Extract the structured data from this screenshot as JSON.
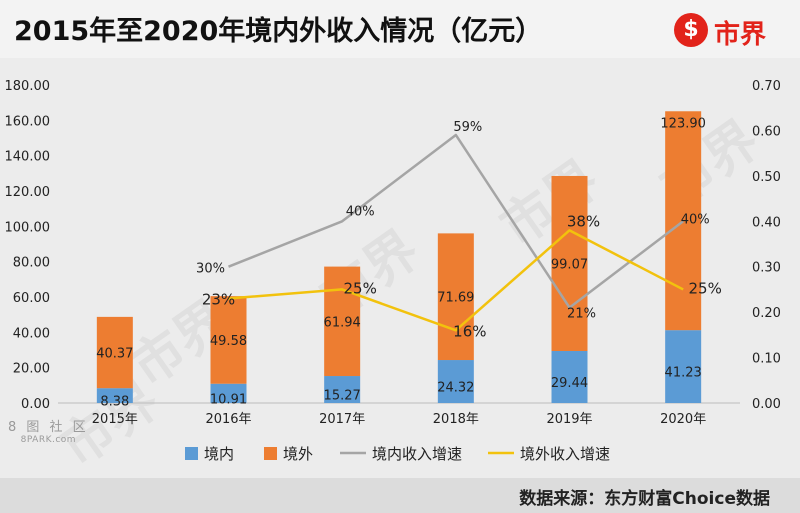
{
  "header": {
    "title": "2015年至2020年境内外收入情况（亿元）",
    "logo_symbol": "$",
    "logo_text": "市界"
  },
  "footer": {
    "source": "数据来源：东方财富Choice数据"
  },
  "watermark": {
    "logo_text": "市界",
    "site_name_cn": "8 图 社 区",
    "site_name_en": "8PARK.com"
  },
  "colors": {
    "domestic": "#5b9bd5",
    "overseas": "#ed7d31",
    "domestic_growth": "#a5a5a5",
    "overseas_growth": "#f2c20d",
    "brand": "#e2231a"
  },
  "chart_data": {
    "type": "bar",
    "stacked": true,
    "categories": [
      "2015年",
      "2016年",
      "2017年",
      "2018年",
      "2019年",
      "2020年"
    ],
    "series": [
      {
        "name": "境内",
        "values": [
          8.38,
          10.91,
          15.27,
          24.32,
          29.44,
          41.23
        ],
        "labels": [
          "8.38",
          "10.91",
          "15.27",
          "24.32",
          "29.44",
          "41.23"
        ]
      },
      {
        "name": "境外",
        "values": [
          40.37,
          49.58,
          61.94,
          71.69,
          99.07,
          123.9
        ],
        "labels": [
          "40.37",
          "49.58",
          "61.94",
          "71.69",
          "99.07",
          "123.90"
        ]
      }
    ],
    "line_series": [
      {
        "name": "境内收入增速",
        "axis": "right",
        "values": [
          null,
          0.3,
          0.4,
          0.59,
          0.21,
          0.4
        ],
        "labels": [
          null,
          "30%",
          "40%",
          "59%",
          "21%",
          "40%"
        ]
      },
      {
        "name": "境外收入增速",
        "axis": "right",
        "values": [
          null,
          0.23,
          0.25,
          0.16,
          0.38,
          0.25
        ],
        "labels": [
          null,
          "23%",
          "25%",
          "16%",
          "38%",
          "25%"
        ]
      }
    ],
    "y_left": {
      "min": 0,
      "max": 180,
      "step": 20,
      "ticks": [
        "0.00",
        "20.00",
        "40.00",
        "60.00",
        "80.00",
        "100.00",
        "120.00",
        "140.00",
        "160.00",
        "180.00"
      ]
    },
    "y_right": {
      "min": 0,
      "max": 0.7,
      "step": 0.1,
      "ticks": [
        "0.00",
        "0.10",
        "0.20",
        "0.30",
        "0.40",
        "0.50",
        "0.60",
        "0.70"
      ]
    },
    "grid": false,
    "legend_position": "bottom"
  }
}
